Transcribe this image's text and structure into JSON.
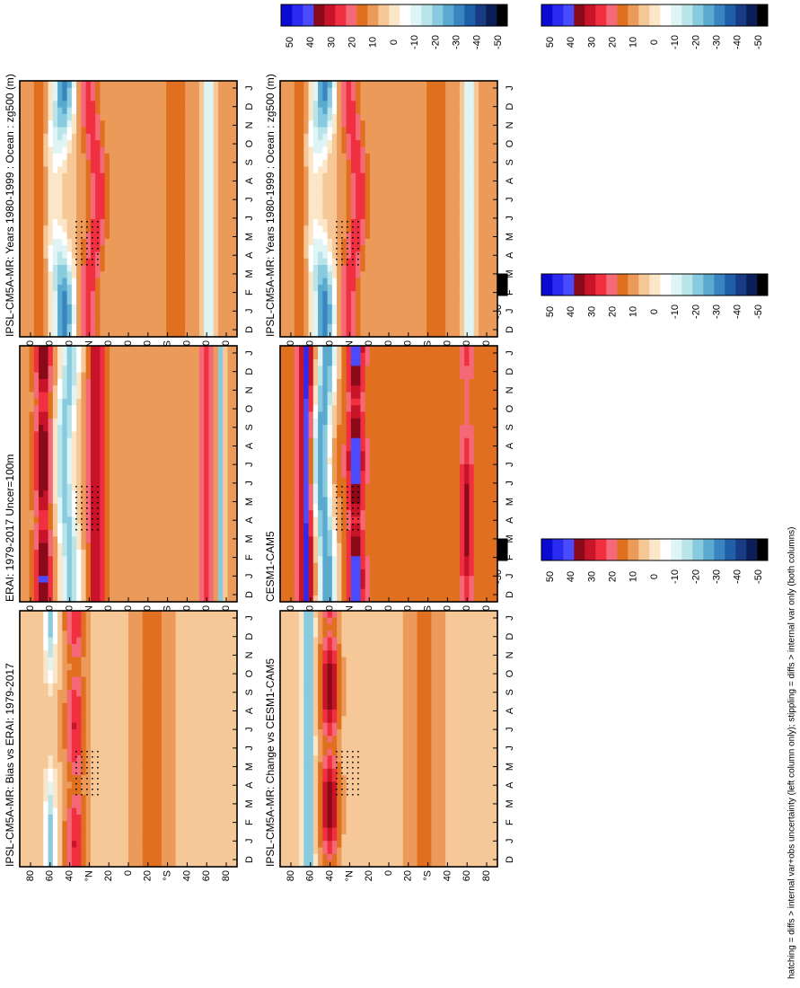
{
  "figure": {
    "footnote": "hatching = diffs > internal var+obs uncertainty (left column only); stippling = diffs > internal var only (both columns)",
    "colorbar_labels": [
      "50",
      "40",
      "30",
      "20",
      "10",
      "0",
      "-10",
      "-20",
      "-30",
      "-40",
      "-50"
    ],
    "colorbar_colors": [
      "#0a0ad2",
      "#2a2af0",
      "#4a4aff",
      "#8a0a1a",
      "#c81428",
      "#f03040",
      "#f46878",
      "#e07020",
      "#ec9a5a",
      "#f6c898",
      "#fbe6c8",
      "#ffffff",
      "#dff4f4",
      "#b8e4ea",
      "#88cade",
      "#5aaad0",
      "#3a84c0",
      "#1f5ea8",
      "#183c84",
      "#0c1e58",
      "#000000"
    ],
    "month_ticks": [
      "D",
      "J",
      "F",
      "M",
      "A",
      "M",
      "J",
      "J",
      "A",
      "S",
      "O",
      "N",
      "D",
      "J"
    ],
    "lat_ticks": [
      "80",
      "60",
      "40",
      "°N",
      "20",
      "0",
      "20",
      "°S",
      "40",
      "60",
      "80"
    ]
  },
  "panels": [
    {
      "title": "IPSL-CM5A-MR: Years 1980-1999 : Ocean : zg500 (m)",
      "field": "clim"
    },
    {
      "title": "ERAI: 1979-2017 Uncer=100m",
      "field": "obs"
    },
    {
      "title": "IPSL-CM5A-MR: Bias vs ERAI: 1979-2017",
      "field": "bias"
    },
    {
      "title": "IPSL-CM5A-MR: Years 1980-1999 : Ocean : zg500 (m)",
      "field": "clim2"
    },
    {
      "title": "CESM1-CAM5",
      "field": "cesm"
    },
    {
      "title": "IPSL-CM5A-MR: Change vs CESM1-CAM5",
      "field": "change"
    }
  ],
  "chart_data": [
    {
      "type": "heatmap",
      "title": "IPSL-CM5A-MR: Years 1980-1999 : Ocean : zg500 (m)",
      "xlabel": "",
      "ylabel": "",
      "x": [
        "D",
        "J",
        "F",
        "M",
        "A",
        "M",
        "J",
        "J",
        "A",
        "S",
        "O",
        "N",
        "D",
        "J"
      ],
      "y": [
        "80°N",
        "60°N",
        "40°N",
        "20°N",
        "0",
        "20°S",
        "40°S",
        "60°S",
        "80°S"
      ],
      "colorbar": [
        -50,
        50
      ]
    },
    {
      "type": "heatmap",
      "title": "ERAI: 1979-2017 Uncer=100m",
      "x": [
        "D",
        "J",
        "F",
        "M",
        "A",
        "M",
        "J",
        "J",
        "A",
        "S",
        "O",
        "N",
        "D",
        "J"
      ],
      "y": [
        "80°N",
        "60°N",
        "40°N",
        "20°N",
        "0",
        "20°S",
        "40°S",
        "60°S",
        "80°S"
      ],
      "colorbar": [
        -50,
        50
      ]
    },
    {
      "type": "heatmap",
      "title": "IPSL-CM5A-MR: Bias vs ERAI: 1979-2017",
      "x": [
        "D",
        "J",
        "F",
        "M",
        "A",
        "M",
        "J",
        "J",
        "A",
        "S",
        "O",
        "N",
        "D",
        "J"
      ],
      "y": [
        "80°N",
        "60°N",
        "40°N",
        "20°N",
        "0",
        "20°S",
        "40°S",
        "60°S",
        "80°S"
      ],
      "colorbar": [
        -50,
        50
      ]
    },
    {
      "type": "heatmap",
      "title": "IPSL-CM5A-MR: Years 1980-1999 : Ocean : zg500 (m)",
      "x": [
        "D",
        "J",
        "F",
        "M",
        "A",
        "M",
        "J",
        "J",
        "A",
        "S",
        "O",
        "N",
        "D",
        "J"
      ],
      "y": [
        "80°N",
        "60°N",
        "40°N",
        "20°N",
        "0",
        "20°S",
        "40°S",
        "60°S",
        "80°S"
      ],
      "colorbar": [
        -50,
        50
      ]
    },
    {
      "type": "heatmap",
      "title": "CESM1-CAM5",
      "x": [
        "D",
        "J",
        "F",
        "M",
        "A",
        "M",
        "J",
        "J",
        "A",
        "S",
        "O",
        "N",
        "D",
        "J"
      ],
      "y": [
        "80°N",
        "60°N",
        "40°N",
        "20°N",
        "0",
        "20°S",
        "40°S",
        "60°S",
        "80°S"
      ],
      "colorbar": [
        -50,
        50
      ]
    },
    {
      "type": "heatmap",
      "title": "IPSL-CM5A-MR: Change vs CESM1-CAM5",
      "x": [
        "D",
        "J",
        "F",
        "M",
        "A",
        "M",
        "J",
        "J",
        "A",
        "S",
        "O",
        "N",
        "D",
        "J"
      ],
      "y": [
        "80°N",
        "60°N",
        "40°N",
        "20°N",
        "0",
        "20°S",
        "40°S",
        "60°S",
        "80°S"
      ],
      "colorbar": [
        -50,
        50
      ]
    }
  ]
}
